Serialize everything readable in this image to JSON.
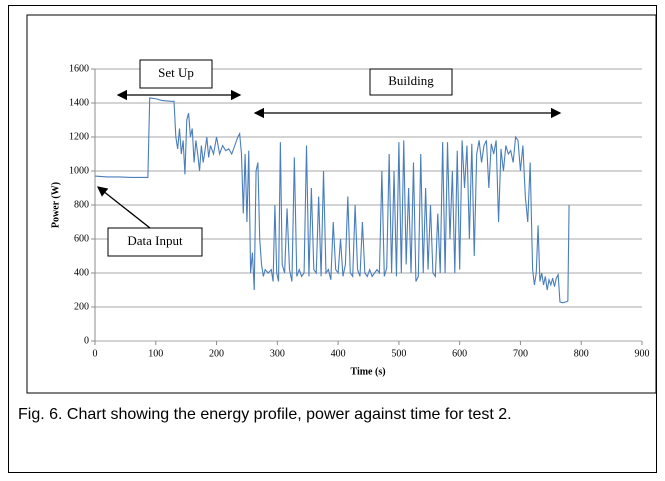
{
  "chart_data": {
    "type": "line",
    "x_label": "Time (s)",
    "y_label": "Power (W)",
    "annotations": [
      "Set Up",
      "Building",
      "Data Input"
    ],
    "color": "#4a7ebb",
    "grid": true,
    "xlim": [
      0,
      900
    ],
    "xticks": [
      0,
      100,
      200,
      300,
      400,
      500,
      600,
      700,
      800,
      900
    ],
    "ylim": [
      0,
      1600
    ],
    "yticks": [
      0,
      200,
      400,
      600,
      800,
      1000,
      1200,
      1400,
      1600
    ],
    "x": [
      0,
      20,
      40,
      60,
      80,
      87,
      90,
      100,
      110,
      125,
      130,
      133,
      136,
      139,
      142,
      145,
      148,
      151,
      154,
      157,
      160,
      163,
      166,
      169,
      172,
      175,
      178,
      181,
      184,
      187,
      190,
      195,
      200,
      205,
      210,
      215,
      220,
      225,
      230,
      235,
      238,
      241,
      244,
      247,
      250,
      253,
      256,
      259,
      262,
      265,
      268,
      271,
      274,
      277,
      280,
      285,
      290,
      293,
      296,
      299,
      302,
      305,
      308,
      312,
      316,
      320,
      324,
      328,
      332,
      336,
      340,
      344,
      348,
      352,
      356,
      360,
      364,
      368,
      372,
      376,
      380,
      384,
      388,
      392,
      396,
      400,
      404,
      408,
      412,
      416,
      420,
      424,
      428,
      432,
      436,
      440,
      444,
      448,
      452,
      456,
      460,
      464,
      468,
      472,
      476,
      480,
      484,
      488,
      492,
      496,
      500,
      504,
      508,
      512,
      516,
      520,
      524,
      528,
      532,
      536,
      540,
      544,
      548,
      552,
      556,
      560,
      564,
      568,
      572,
      576,
      580,
      584,
      588,
      592,
      596,
      600,
      604,
      608,
      612,
      616,
      620,
      624,
      628,
      632,
      636,
      640,
      644,
      648,
      652,
      656,
      660,
      664,
      668,
      672,
      676,
      680,
      684,
      688,
      692,
      696,
      700,
      704,
      708,
      712,
      716,
      720,
      723,
      726,
      729,
      732,
      735,
      738,
      741,
      744,
      747,
      750,
      753,
      756,
      759,
      762,
      765,
      770,
      775,
      778,
      780
    ],
    "values": [
      970,
      965,
      965,
      962,
      962,
      962,
      1430,
      1425,
      1415,
      1410,
      1410,
      1200,
      1130,
      1250,
      1100,
      1180,
      980,
      1300,
      1340,
      1200,
      1250,
      1050,
      1180,
      1100,
      1000,
      1150,
      1050,
      1120,
      1200,
      1080,
      1150,
      1100,
      1200,
      1100,
      1150,
      1120,
      1130,
      1100,
      1150,
      1200,
      1220,
      1100,
      750,
      1100,
      700,
      1120,
      400,
      520,
      300,
      1000,
      1050,
      600,
      450,
      380,
      420,
      400,
      420,
      350,
      800,
      400,
      350,
      1170,
      450,
      400,
      780,
      420,
      350,
      1080,
      380,
      420,
      380,
      400,
      1150,
      380,
      900,
      420,
      400,
      850,
      380,
      1000,
      400,
      420,
      360,
      700,
      420,
      400,
      600,
      380,
      450,
      850,
      400,
      380,
      800,
      420,
      380,
      700,
      400,
      380,
      420,
      380,
      400,
      420,
      400,
      1000,
      380,
      430,
      1100,
      400,
      1000,
      380,
      1170,
      400,
      1180,
      450,
      900,
      400,
      1050,
      350,
      380,
      1100,
      400,
      900,
      420,
      800,
      400,
      380,
      750,
      400,
      1170,
      400,
      1170,
      600,
      1000,
      400,
      1120,
      420,
      1180,
      900,
      1150,
      600,
      1160,
      500,
      1100,
      1180,
      1050,
      1150,
      1180,
      900,
      1160,
      1100,
      1180,
      700,
      1130,
      1000,
      1150,
      1100,
      1120,
      1050,
      1200,
      1180,
      1000,
      1150,
      850,
      700,
      1050,
      420,
      330,
      400,
      680,
      350,
      400,
      330,
      380,
      300,
      360,
      330,
      370,
      320,
      370,
      390,
      230,
      225,
      230,
      235,
      800
    ]
  },
  "caption": "Fig. 6. Chart showing the energy profile, power against time for test 2."
}
